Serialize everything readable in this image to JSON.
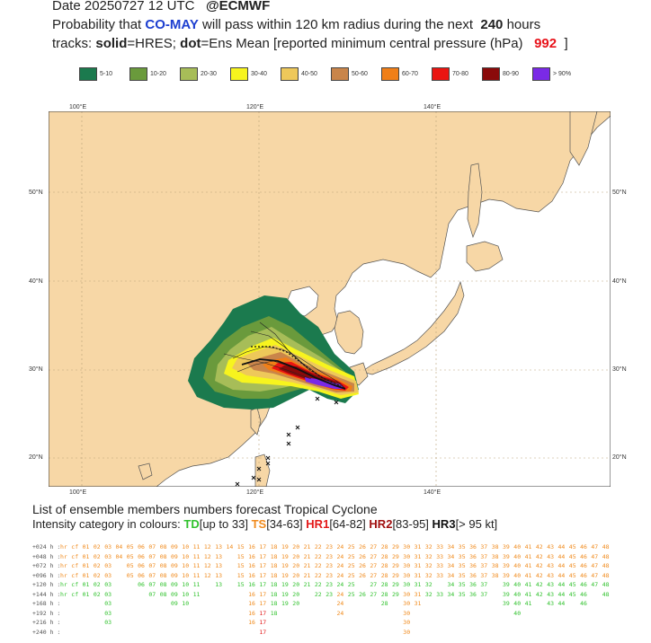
{
  "header": {
    "date_line_prefix": "Date 20250727 12 UTC",
    "date_line_brand": "@ECMWF",
    "prob_prefix": "Probability that",
    "storm_name": "CO-MAY",
    "prob_mid": "will pass within 120 km radius during the next",
    "hours_value": "240",
    "prob_suffix": "hours",
    "tracks_prefix": "tracks:",
    "solid_word": "solid",
    "solid_def": "=HRES;",
    "dot_word": "dot",
    "dot_def": "=Ens Mean [reported minimum central pressure (hPa)",
    "pressure_value": "992",
    "pressure_close": "]"
  },
  "legend": [
    {
      "label": "5-10",
      "color": "#1b7a4e"
    },
    {
      "label": "10-20",
      "color": "#6a9a3c"
    },
    {
      "label": "20-30",
      "color": "#a7bd58"
    },
    {
      "label": "30-40",
      "color": "#f7f41e"
    },
    {
      "label": "40-50",
      "color": "#eec85a"
    },
    {
      "label": "50-60",
      "color": "#c9854a"
    },
    {
      "label": "60-70",
      "color": "#f07f18"
    },
    {
      "label": "70-80",
      "color": "#ea1511"
    },
    {
      "label": "80-90",
      "color": "#8a0a0a"
    },
    {
      "label": "> 90%",
      "color": "#7a2ae6"
    }
  ],
  "map": {
    "land_color": "#f7d7a6",
    "sea_color": "#ffffff",
    "grid_color": "#b9a27a",
    "lon_labels": [
      "100°E",
      "120°E",
      "140°E"
    ],
    "lat_labels": [
      "50°N",
      "40°N",
      "30°N",
      "20°N"
    ],
    "probability_core_color": "#7a2ae6"
  },
  "ensemble_section": {
    "title": "List of ensemble members numbers forecast Tropical Cyclone",
    "intensity_prefix": "Intensity category in colours:",
    "td_label": "TD",
    "td_range": "[up to 33]",
    "ts_label": "TS",
    "ts_range": "[34-63]",
    "hr1_label": "HR1",
    "hr1_range": "[64-82]",
    "hr2_label": "HR2",
    "hr2_range": "[83-95]",
    "hr3_label": "HR3",
    "hr3_range": "[> 95 kt]",
    "rows": [
      {
        "label": "+024 h :",
        "members": "hr cf 01 02 03 04 05 06 07 08 09 10 11 12 13 14 15 16 17 18 19 20 21 22 23 24 25 26 27 28 29 30 31 32 33 34 35 36 37 38 39 40 41 42 43 44 45 46 47 48"
      },
      {
        "label": "+048 h :",
        "members": "hr cf 01 02 03 04 05 06 07 08 09 10 11 12 13 15 16 17 18 19 20 21 22 23 24 25 26 27 28 29 30 31 32 33 34 35 36 37 38 39 40 41 42 43 44 45 46 47 48"
      },
      {
        "label": "+072 h :",
        "members": "hr cf 01 02 03 05 06 07 08 09 10 11 12 13 15 16 17 18 19 20 21 22 23 24 25 26 27 28 29 30 31 32 33 34 35 36 37 38 39 40 41 42 43 44 45 46 47 48"
      },
      {
        "label": "+096 h :",
        "members": "hr cf 01 02 03 05 06 07 08 09 10 11 12 13 15 16 17 18 19 20 21 22 23 24 25 26 27 28 29 30 31 32 33 34 35 36 37 38 39 40 41 42 43 44 45 46 47 48"
      },
      {
        "label": "+120 h :",
        "members": "hr cf 01 02 03 06 07 08 09 10 11 13 15 16 17 18 19 20 21 22 23 24 25 27 28 29 30 31 32 34 35 36 37 39 40 41 42 43 44 45 46 47 48"
      },
      {
        "label": "+144 h :",
        "members": "hr cf 01 02 03 07 08 09 10 11 16 17 18 19 20 22 23 24 25 26 27 28 29 30 31 32 33 34 35 36 37 39 40 41 42 43 44 45 46 48"
      },
      {
        "label": "+168 h :",
        "members": "03 09 10 16 17 18 19 20 24 28 30 31 39 40 41 43 44 46"
      },
      {
        "label": "+192 h :",
        "members": "03 16 17 18 24 30 40"
      },
      {
        "label": "+216 h :",
        "members": "03 16 17 30"
      },
      {
        "label": "+240 h :",
        "members": "17 30"
      }
    ]
  }
}
